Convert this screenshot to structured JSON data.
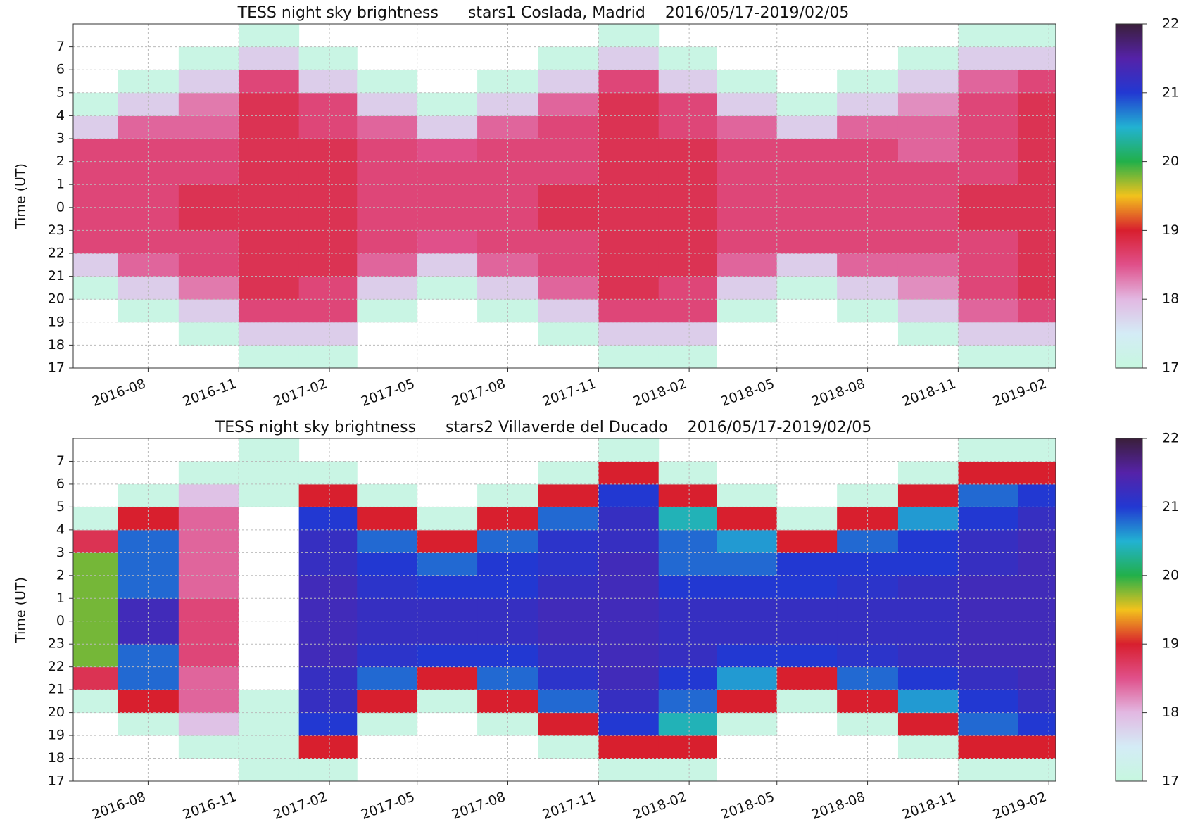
{
  "chart_data": [
    {
      "type": "heatmap",
      "title": "TESS night sky brightness      stars1 Coslada, Madrid    2016/05/17-2019/02/05",
      "y_label": "Time (UT)",
      "x": [
        "2016-05",
        "2016-07",
        "2016-09",
        "2016-11",
        "2017-01",
        "2017-03",
        "2017-05",
        "2017-07",
        "2017-09",
        "2017-11",
        "2018-01",
        "2018-03",
        "2018-05",
        "2018-07",
        "2018-09",
        "2018-11",
        "2019-01"
      ],
      "y": [
        17,
        18,
        19,
        20,
        21,
        22,
        23,
        24,
        25,
        26,
        27,
        28,
        29,
        30,
        31
      ],
      "xlim": [
        "2016-05-17",
        "2019-02-08"
      ],
      "xticks": [
        "2016-08",
        "2016-11",
        "2017-02",
        "2017-05",
        "2017-08",
        "2017-11",
        "2018-02",
        "2018-05",
        "2018-08",
        "2018-11",
        "2019-02"
      ],
      "ylim": [
        17,
        32
      ],
      "yticks": [
        17,
        18,
        19,
        20,
        21,
        22,
        23,
        {
          "value": 24,
          "label": "0"
        },
        {
          "value": 25,
          "label": "1"
        },
        {
          "value": 26,
          "label": "2"
        },
        {
          "value": 27,
          "label": "3"
        },
        {
          "value": 28,
          "label": "4"
        },
        {
          "value": 29,
          "label": "5"
        },
        {
          "value": 30,
          "label": "6"
        },
        {
          "value": 31,
          "label": "7"
        }
      ],
      "grid": true,
      "values": [
        [
          null,
          null,
          null,
          17.1,
          17.8,
          18.6,
          18.6,
          18.6,
          18.6,
          18.6,
          17.8,
          17.1,
          null,
          null,
          null
        ],
        [
          null,
          null,
          17.1,
          17.8,
          18.4,
          18.6,
          18.6,
          18.6,
          18.6,
          18.6,
          18.4,
          17.8,
          17.1,
          null,
          null
        ],
        [
          null,
          17.1,
          17.8,
          18.3,
          18.6,
          18.6,
          18.8,
          18.8,
          18.6,
          18.6,
          18.4,
          18.3,
          17.8,
          17.1,
          null
        ],
        [
          17.1,
          17.8,
          18.6,
          18.8,
          18.8,
          18.8,
          18.8,
          18.8,
          18.8,
          18.8,
          18.8,
          18.8,
          18.6,
          17.8,
          17.1
        ],
        [
          17.1,
          17.8,
          18.6,
          18.6,
          18.8,
          18.8,
          18.8,
          18.8,
          18.8,
          18.8,
          18.6,
          18.6,
          17.8,
          17.1,
          null
        ],
        [
          null,
          null,
          17.1,
          17.8,
          18.4,
          18.6,
          18.6,
          18.6,
          18.6,
          18.6,
          18.4,
          17.8,
          17.1,
          null,
          null
        ],
        [
          null,
          null,
          null,
          17.1,
          17.8,
          18.5,
          18.6,
          18.6,
          18.6,
          18.5,
          17.8,
          17.1,
          null,
          null,
          null
        ],
        [
          null,
          null,
          17.1,
          17.8,
          18.4,
          18.6,
          18.6,
          18.6,
          18.6,
          18.6,
          18.4,
          17.8,
          17.1,
          null,
          null
        ],
        [
          null,
          17.1,
          17.8,
          18.4,
          18.6,
          18.6,
          18.8,
          18.8,
          18.6,
          18.6,
          18.6,
          18.4,
          17.8,
          17.1,
          null
        ],
        [
          17.1,
          17.8,
          18.6,
          18.8,
          18.8,
          18.8,
          18.8,
          18.8,
          18.8,
          18.8,
          18.8,
          18.8,
          18.6,
          17.8,
          17.1
        ],
        [
          17.1,
          17.8,
          18.6,
          18.6,
          18.8,
          18.8,
          18.8,
          18.8,
          18.8,
          18.8,
          18.6,
          18.6,
          17.8,
          17.1,
          null
        ],
        [
          null,
          null,
          17.1,
          17.8,
          18.4,
          18.6,
          18.6,
          18.6,
          18.6,
          18.6,
          18.4,
          17.8,
          17.1,
          null,
          null
        ],
        [
          null,
          null,
          null,
          17.1,
          17.8,
          18.6,
          18.6,
          18.6,
          18.6,
          18.6,
          17.8,
          17.1,
          null,
          null,
          null
        ],
        [
          null,
          null,
          17.1,
          17.8,
          18.4,
          18.6,
          18.6,
          18.6,
          18.6,
          18.6,
          18.4,
          17.8,
          17.1,
          null,
          null
        ],
        [
          null,
          17.1,
          17.8,
          18.2,
          18.4,
          18.6,
          18.6,
          18.6,
          18.6,
          18.4,
          18.4,
          18.2,
          17.8,
          17.1,
          null
        ],
        [
          17.1,
          17.8,
          18.4,
          18.6,
          18.6,
          18.6,
          18.8,
          18.8,
          18.6,
          18.6,
          18.6,
          18.6,
          18.4,
          17.8,
          17.1
        ],
        [
          17.1,
          17.8,
          18.6,
          18.8,
          18.8,
          18.8,
          18.8,
          18.8,
          18.8,
          18.8,
          18.8,
          18.8,
          18.6,
          17.8,
          17.1
        ]
      ],
      "colorbar": {
        "lim": [
          17,
          22
        ],
        "ticks": [
          17,
          18,
          19,
          20,
          21,
          22
        ],
        "colors": [
          "#c6f7df",
          "#d4ecf6",
          "#e2b8e2",
          "#e0508a",
          "#d81f2e",
          "#f2c21c",
          "#22b04a",
          "#22b2d2",
          "#2238d2",
          "#5522a8",
          "#3a1f3a"
        ]
      }
    },
    {
      "type": "heatmap",
      "title": "TESS night sky brightness      stars2 Villaverde del Ducado    2016/05/17-2019/02/05",
      "y_label": "Time (UT)",
      "x": [
        "2016-05",
        "2016-07",
        "2016-09",
        "2016-11",
        "2017-01",
        "2017-03",
        "2017-05",
        "2017-07",
        "2017-09",
        "2017-11",
        "2018-01",
        "2018-03",
        "2018-05",
        "2018-07",
        "2018-09",
        "2018-11",
        "2019-01"
      ],
      "y": [
        17,
        18,
        19,
        20,
        21,
        22,
        23,
        24,
        25,
        26,
        27,
        28,
        29,
        30,
        31
      ],
      "xlim": [
        "2016-05-17",
        "2019-02-08"
      ],
      "xticks": [
        "2016-08",
        "2016-11",
        "2017-02",
        "2017-05",
        "2017-08",
        "2017-11",
        "2018-02",
        "2018-05",
        "2018-08",
        "2018-11",
        "2019-02"
      ],
      "ylim": [
        17,
        32
      ],
      "yticks": [
        17,
        18,
        19,
        20,
        21,
        22,
        23,
        {
          "value": 24,
          "label": "0"
        },
        {
          "value": 25,
          "label": "1"
        },
        {
          "value": 26,
          "label": "2"
        },
        {
          "value": 27,
          "label": "3"
        },
        {
          "value": 28,
          "label": "4"
        },
        {
          "value": 29,
          "label": "5"
        },
        {
          "value": 30,
          "label": "6"
        },
        {
          "value": 31,
          "label": "7"
        }
      ],
      "grid": true,
      "values": [
        [
          null,
          null,
          null,
          17.1,
          18.8,
          19.8,
          19.8,
          19.8,
          19.8,
          19.8,
          18.8,
          17.1,
          null,
          null,
          null
        ],
        [
          null,
          null,
          17.1,
          19.0,
          20.8,
          20.8,
          21.3,
          21.3,
          20.8,
          20.8,
          20.8,
          19.0,
          17.1,
          null,
          null
        ],
        [
          null,
          17.1,
          17.9,
          18.4,
          18.4,
          18.6,
          18.6,
          18.6,
          18.4,
          18.4,
          18.4,
          18.4,
          17.9,
          17.1,
          null
        ],
        [
          17.1,
          17.1,
          17.1,
          17.1,
          null,
          null,
          null,
          null,
          null,
          null,
          null,
          null,
          17.1,
          17.1,
          17.1
        ],
        [
          17.1,
          19.0,
          21.0,
          21.2,
          21.2,
          21.3,
          21.3,
          21.3,
          21.3,
          21.2,
          21.2,
          21.0,
          19.0,
          17.1,
          null
        ],
        [
          null,
          null,
          17.1,
          19.0,
          20.8,
          21.1,
          21.2,
          21.2,
          21.1,
          21.0,
          20.8,
          19.0,
          17.1,
          null,
          null
        ],
        [
          null,
          null,
          null,
          17.1,
          19.0,
          21.0,
          21.2,
          21.2,
          21.0,
          20.8,
          19.0,
          17.1,
          null,
          null,
          null
        ],
        [
          null,
          null,
          17.1,
          19.0,
          20.8,
          21.0,
          21.2,
          21.2,
          21.0,
          21.0,
          20.8,
          19.0,
          17.1,
          null,
          null
        ],
        [
          null,
          17.1,
          19.0,
          20.8,
          21.1,
          21.2,
          21.3,
          21.3,
          21.2,
          21.1,
          21.1,
          20.8,
          19.0,
          17.1,
          null
        ],
        [
          17.1,
          19.0,
          21.0,
          21.2,
          21.3,
          21.3,
          21.3,
          21.3,
          21.3,
          21.3,
          21.2,
          21.2,
          21.0,
          19.0,
          17.1
        ],
        [
          17.1,
          19.0,
          20.4,
          20.8,
          21.0,
          21.2,
          21.2,
          21.2,
          21.0,
          20.8,
          20.8,
          20.4,
          19.0,
          17.1,
          null
        ],
        [
          null,
          null,
          17.1,
          19.0,
          20.6,
          21.0,
          21.2,
          21.2,
          21.0,
          20.8,
          20.6,
          19.0,
          17.1,
          null,
          null
        ],
        [
          null,
          null,
          null,
          17.1,
          19.0,
          21.0,
          21.2,
          21.2,
          21.0,
          21.0,
          19.0,
          17.1,
          null,
          null,
          null
        ],
        [
          null,
          null,
          17.1,
          19.0,
          20.8,
          21.1,
          21.2,
          21.2,
          21.1,
          21.0,
          20.8,
          19.0,
          17.1,
          null,
          null
        ],
        [
          null,
          17.1,
          19.0,
          20.6,
          21.0,
          21.2,
          21.2,
          21.2,
          21.2,
          21.0,
          21.0,
          20.6,
          19.0,
          17.1,
          null
        ],
        [
          17.1,
          19.0,
          20.8,
          21.0,
          21.2,
          21.3,
          21.3,
          21.3,
          21.3,
          21.2,
          21.2,
          21.0,
          20.8,
          19.0,
          17.1
        ],
        [
          17.1,
          19.0,
          21.0,
          21.2,
          21.3,
          21.3,
          21.3,
          21.3,
          21.3,
          21.3,
          21.3,
          21.2,
          21.0,
          19.0,
          17.1
        ]
      ],
      "colorbar": {
        "lim": [
          17,
          22
        ],
        "ticks": [
          17,
          18,
          19,
          20,
          21,
          22
        ],
        "colors": [
          "#c6f7df",
          "#d4ecf6",
          "#e2b8e2",
          "#e0508a",
          "#d81f2e",
          "#f2c21c",
          "#22b04a",
          "#22b2d2",
          "#2238d2",
          "#5522a8",
          "#3a1f3a"
        ]
      }
    }
  ]
}
